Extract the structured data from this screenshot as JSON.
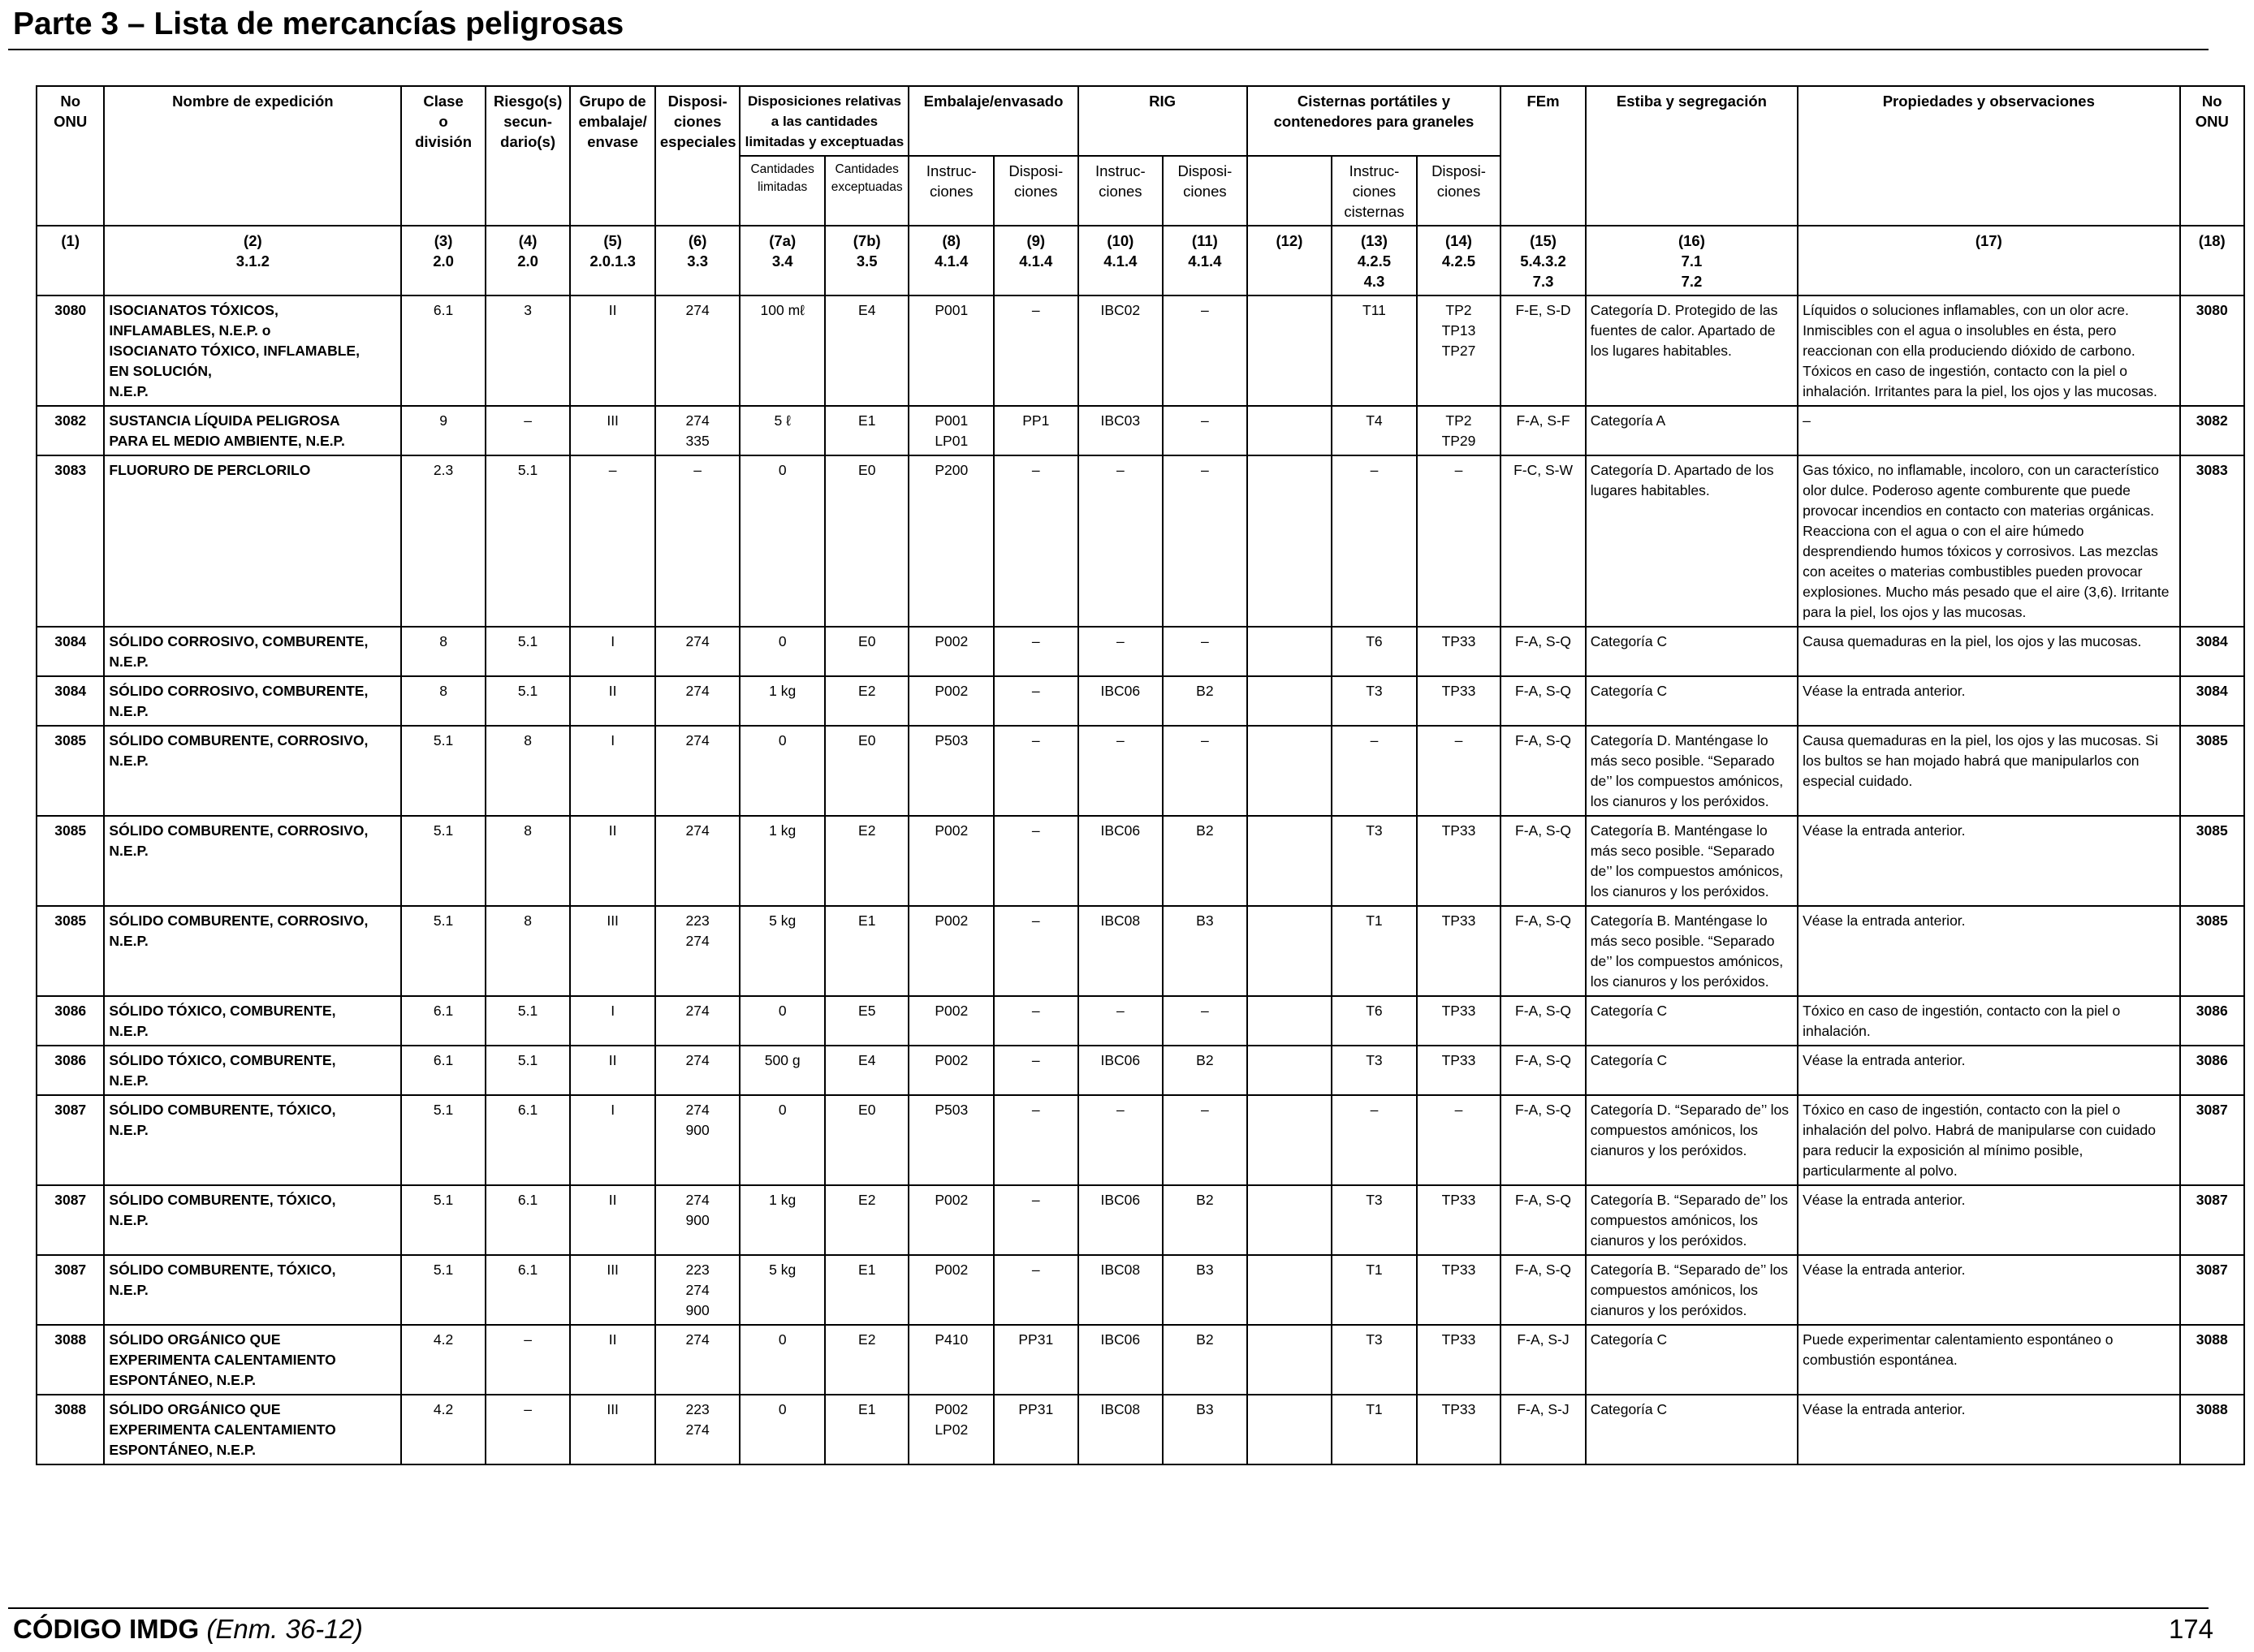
{
  "page": {
    "title": "Parte 3 – Lista de mercancías peligrosas",
    "footer_code": "CÓDIGO IMDG",
    "footer_amend": "(Enm. 36-12)",
    "page_number": "174"
  },
  "headers": {
    "h1": "No\nONU",
    "h2": "Nombre de expedición",
    "h3": "Clase\no\ndivisión",
    "h4": "Riesgo(s)\nsecun-\ndario(s)",
    "h5": "Grupo de\nembalaje/\nenvase",
    "h6": "Disposi-\nciones\nespeciales",
    "h7": "Disposiciones relativas\na las cantidades\nlimitadas y exceptuadas",
    "h8": "Embalaje/envasado",
    "h9": "RIG",
    "h10": "Cisternas portátiles y\ncontenedores para graneles",
    "h11": "FEm",
    "h12": "Estiba y segregación",
    "h13": "Propiedades y observaciones",
    "h14": "No\nONU",
    "s7a": "Cantidades\nlimitadas",
    "s7b": "Cantidades\nexceptuadas",
    "s8": "Instruc-\nciones",
    "s9": "Disposi-\nciones",
    "s10": "Instruc-\nciones",
    "s11": "Disposi-\nciones",
    "s13": "Instruc-\nciones\ncisternas",
    "s14": "Disposi-\nciones"
  },
  "refs": {
    "r1": "(1)",
    "r2": "(2)\n3.1.2",
    "r3": "(3)\n2.0",
    "r4": "(4)\n2.0",
    "r5": "(5)\n2.0.1.3",
    "r6": "(6)\n3.3",
    "r7a": "(7a)\n3.4",
    "r7b": "(7b)\n3.5",
    "r8": "(8)\n4.1.4",
    "r9": "(9)\n4.1.4",
    "r10": "(10)\n4.1.4",
    "r11": "(11)\n4.1.4",
    "r12": "(12)",
    "r13": "(13)\n4.2.5\n4.3",
    "r14": "(14)\n4.2.5",
    "r15": "(15)\n5.4.3.2\n7.3",
    "r16": "(16)\n7.1\n7.2",
    "r17": "(17)",
    "r18": "(18)"
  },
  "rows": [
    {
      "un": "3080",
      "name": "ISOCIANATOS TÓXICOS,\nINFLAMABLES, N.E.P. o\nISOCIANATO TÓXICO, INFLAMABLE,\nEN SOLUCIÓN,\nN.E.P.",
      "cls": "6.1",
      "sub": "3",
      "pg": "II",
      "sp": "274",
      "lq": "100 mℓ",
      "eq": "E4",
      "pi": "P001",
      "pp": "–",
      "ibc": "IBC02",
      "ibp": "–",
      "c12": "",
      "tnk": "T11",
      "tp": "TP2\nTP13\nTP27",
      "ems": "F-E, S-D",
      "stow": "Categoría D. Protegido de las fuentes de calor. Apartado de los lugares habitables.",
      "prop": "Líquidos o soluciones inflamables, con un olor acre. Inmiscibles con el agua o insolubles en ésta, pero reaccionan con ella produciendo dióxido de carbono. Tóxicos en caso de ingestión, contacto con la piel o inhalación. Irritantes para la piel, los ojos y las mucosas.",
      "un2": "3080"
    },
    {
      "un": "3082",
      "name": "SUSTANCIA LÍQUIDA PELIGROSA\nPARA EL MEDIO AMBIENTE, N.E.P.",
      "cls": "9",
      "sub": "–",
      "pg": "III",
      "sp": "274\n335",
      "lq": "5 ℓ",
      "eq": "E1",
      "pi": "P001\nLP01",
      "pp": "PP1",
      "ibc": "IBC03",
      "ibp": "–",
      "c12": "",
      "tnk": "T4",
      "tp": "TP2\nTP29",
      "ems": "F-A, S-F",
      "stow": "Categoría A",
      "prop": "–",
      "un2": "3082"
    },
    {
      "un": "3083",
      "name": "FLUORURO DE PERCLORILO",
      "cls": "2.3",
      "sub": "5.1",
      "pg": "–",
      "sp": "–",
      "lq": "0",
      "eq": "E0",
      "pi": "P200",
      "pp": "–",
      "ibc": "–",
      "ibp": "–",
      "c12": "",
      "tnk": "–",
      "tp": "–",
      "ems": "F-C, S-W",
      "stow": "Categoría D. Apartado de los lugares habitables.",
      "prop": "Gas tóxico, no inflamable, incoloro, con un característico olor dulce. Poderoso agente comburente que puede provocar incendios en contacto con materias orgánicas. Reacciona con el agua o con el aire húmedo desprendiendo humos tóxicos y corrosivos. Las mezclas con aceites o materias combustibles pueden provocar explosiones. Mucho más pesado que el aire (3,6). Irritante para la piel, los ojos y las mucosas.",
      "un2": "3083"
    },
    {
      "un": "3084",
      "name": "SÓLIDO CORROSIVO, COMBURENTE,\nN.E.P.",
      "cls": "8",
      "sub": "5.1",
      "pg": "I",
      "sp": "274",
      "lq": "0",
      "eq": "E0",
      "pi": "P002",
      "pp": "–",
      "ibc": "–",
      "ibp": "–",
      "c12": "",
      "tnk": "T6",
      "tp": "TP33",
      "ems": "F-A, S-Q",
      "stow": "Categoría C",
      "prop": "Causa quemaduras en la piel, los ojos y las mucosas.",
      "un2": "3084"
    },
    {
      "un": "3084",
      "name": "SÓLIDO CORROSIVO, COMBURENTE,\nN.E.P.",
      "cls": "8",
      "sub": "5.1",
      "pg": "II",
      "sp": "274",
      "lq": "1 kg",
      "eq": "E2",
      "pi": "P002",
      "pp": "–",
      "ibc": "IBC06",
      "ibp": "B2",
      "c12": "",
      "tnk": "T3",
      "tp": "TP33",
      "ems": "F-A, S-Q",
      "stow": "Categoría C",
      "prop": "Véase la entrada anterior.",
      "un2": "3084"
    },
    {
      "un": "3085",
      "name": "SÓLIDO COMBURENTE, CORROSIVO,\nN.E.P.",
      "cls": "5.1",
      "sub": "8",
      "pg": "I",
      "sp": "274",
      "lq": "0",
      "eq": "E0",
      "pi": "P503",
      "pp": "–",
      "ibc": "–",
      "ibp": "–",
      "c12": "",
      "tnk": "–",
      "tp": "–",
      "ems": "F-A, S-Q",
      "stow": "Categoría D. Manténgase lo más seco posible. “Separado de’’ los compuestos amónicos, los cianuros y los peróxidos.",
      "prop": "Causa quemaduras en la piel, los ojos y las mucosas. Si los bultos se han mojado habrá que manipularlos con especial cuidado.",
      "un2": "3085"
    },
    {
      "un": "3085",
      "name": "SÓLIDO COMBURENTE, CORROSIVO,\nN.E.P.",
      "cls": "5.1",
      "sub": "8",
      "pg": "II",
      "sp": "274",
      "lq": "1 kg",
      "eq": "E2",
      "pi": "P002",
      "pp": "–",
      "ibc": "IBC06",
      "ibp": "B2",
      "c12": "",
      "tnk": "T3",
      "tp": "TP33",
      "ems": "F-A, S-Q",
      "stow": "Categoría B. Manténgase lo más seco posible. “Separado de’’ los compuestos amónicos, los cianuros y los peróxidos.",
      "prop": "Véase la entrada anterior.",
      "un2": "3085"
    },
    {
      "un": "3085",
      "name": "SÓLIDO COMBURENTE, CORROSIVO,\nN.E.P.",
      "cls": "5.1",
      "sub": "8",
      "pg": "III",
      "sp": "223\n274",
      "lq": "5 kg",
      "eq": "E1",
      "pi": "P002",
      "pp": "–",
      "ibc": "IBC08",
      "ibp": "B3",
      "c12": "",
      "tnk": "T1",
      "tp": "TP33",
      "ems": "F-A, S-Q",
      "stow": "Categoría B. Manténgase lo más seco posible. “Separado de’’ los compuestos amónicos,\nlos cianuros y los peróxidos.",
      "prop": "Véase la entrada anterior.",
      "un2": "3085"
    },
    {
      "un": "3086",
      "name": "SÓLIDO TÓXICO, COMBURENTE,\nN.E.P.",
      "cls": "6.1",
      "sub": "5.1",
      "pg": "I",
      "sp": "274",
      "lq": "0",
      "eq": "E5",
      "pi": "P002",
      "pp": "–",
      "ibc": "–",
      "ibp": "–",
      "c12": "",
      "tnk": "T6",
      "tp": "TP33",
      "ems": "F-A, S-Q",
      "stow": "Categoría C",
      "prop": "Tóxico en caso de ingestión, contacto con la piel o inhalación.",
      "un2": "3086"
    },
    {
      "un": "3086",
      "name": "SÓLIDO TÓXICO, COMBURENTE,\nN.E.P.",
      "cls": "6.1",
      "sub": "5.1",
      "pg": "II",
      "sp": "274",
      "lq": "500 g",
      "eq": "E4",
      "pi": "P002",
      "pp": "–",
      "ibc": "IBC06",
      "ibp": "B2",
      "c12": "",
      "tnk": "T3",
      "tp": "TP33",
      "ems": "F-A, S-Q",
      "stow": "Categoría C",
      "prop": "Véase la entrada anterior.",
      "un2": "3086"
    },
    {
      "un": "3087",
      "name": "SÓLIDO COMBURENTE, TÓXICO,\nN.E.P.",
      "cls": "5.1",
      "sub": "6.1",
      "pg": "I",
      "sp": "274\n900",
      "lq": "0",
      "eq": "E0",
      "pi": "P503",
      "pp": "–",
      "ibc": "–",
      "ibp": "–",
      "c12": "",
      "tnk": "–",
      "tp": "–",
      "ems": "F-A, S-Q",
      "stow": "Categoría D. “Separado de’’ los compuestos amónicos, los cianuros y los peróxidos.",
      "prop": "Tóxico en caso de ingestión, contacto con la piel o inhalación del polvo. Habrá de manipularse con cuidado para reducir la exposición al mínimo posible, particularmente al polvo.",
      "un2": "3087"
    },
    {
      "un": "3087",
      "name": "SÓLIDO COMBURENTE, TÓXICO,\nN.E.P.",
      "cls": "5.1",
      "sub": "6.1",
      "pg": "II",
      "sp": "274\n900",
      "lq": "1 kg",
      "eq": "E2",
      "pi": "P002",
      "pp": "–",
      "ibc": "IBC06",
      "ibp": "B2",
      "c12": "",
      "tnk": "T3",
      "tp": "TP33",
      "ems": "F-A, S-Q",
      "stow": "Categoría B. “Separado de’’ los compuestos amónicos, los cianuros y los peróxidos.",
      "prop": "Véase la entrada anterior.",
      "un2": "3087"
    },
    {
      "un": "3087",
      "name": "SÓLIDO COMBURENTE, TÓXICO,\nN.E.P.",
      "cls": "5.1",
      "sub": "6.1",
      "pg": "III",
      "sp": "223\n274\n900",
      "lq": "5 kg",
      "eq": "E1",
      "pi": "P002",
      "pp": "–",
      "ibc": "IBC08",
      "ibp": "B3",
      "c12": "",
      "tnk": "T1",
      "tp": "TP33",
      "ems": "F-A, S-Q",
      "stow": "Categoría B. “Separado de’’ los compuestos amónicos, los cianuros y los peróxidos.",
      "prop": "Véase la entrada anterior.",
      "un2": "3087"
    },
    {
      "un": "3088",
      "name": "SÓLIDO ORGÁNICO QUE\nEXPERIMENTA CALENTAMIENTO\nESPONTÁNEO, N.E.P.",
      "cls": "4.2",
      "sub": "–",
      "pg": "II",
      "sp": "274",
      "lq": "0",
      "eq": "E2",
      "pi": "P410",
      "pp": "PP31",
      "ibc": "IBC06",
      "ibp": "B2",
      "c12": "",
      "tnk": "T3",
      "tp": "TP33",
      "ems": "F-A, S-J",
      "stow": "Categoría C",
      "prop": "Puede experimentar calentamiento espontáneo o combustión espontánea.",
      "un2": "3088"
    },
    {
      "un": "3088",
      "name": "SÓLIDO ORGÁNICO QUE\nEXPERIMENTA CALENTAMIENTO\nESPONTÁNEO, N.E.P.",
      "cls": "4.2",
      "sub": "–",
      "pg": "III",
      "sp": "223\n274",
      "lq": "0",
      "eq": "E1",
      "pi": "P002\nLP02",
      "pp": "PP31",
      "ibc": "IBC08",
      "ibp": "B3",
      "c12": "",
      "tnk": "T1",
      "tp": "TP33",
      "ems": "F-A, S-J",
      "stow": "Categoría C",
      "prop": "Véase la entrada anterior.",
      "un2": "3088"
    }
  ]
}
